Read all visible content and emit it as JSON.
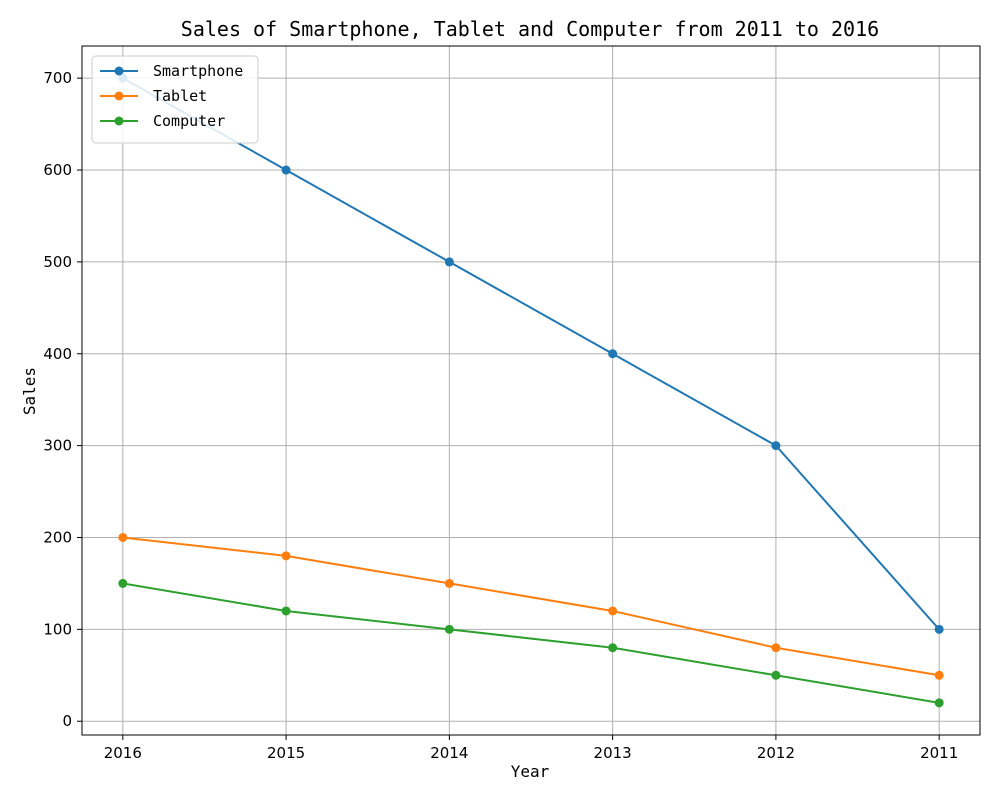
{
  "chart_data": {
    "type": "line",
    "title": "Sales of Smartphone, Tablet and Computer from 2011 to 2016",
    "xlabel": "Year",
    "ylabel": "Sales",
    "categories": [
      "2016",
      "2015",
      "2014",
      "2013",
      "2012",
      "2011"
    ],
    "yticks": [
      0,
      100,
      200,
      300,
      400,
      500,
      600,
      700
    ],
    "ylim": [
      -15,
      735
    ],
    "grid": true,
    "legend_position": "top-left",
    "markers": "circle",
    "series": [
      {
        "name": "Smartphone",
        "color": "#1f77b4",
        "values": [
          700,
          600,
          500,
          400,
          300,
          100
        ]
      },
      {
        "name": "Tablet",
        "color": "#ff7f0e",
        "values": [
          200,
          180,
          150,
          120,
          80,
          50
        ]
      },
      {
        "name": "Computer",
        "color": "#2ca02c",
        "values": [
          150,
          120,
          100,
          80,
          50,
          20
        ]
      }
    ]
  }
}
